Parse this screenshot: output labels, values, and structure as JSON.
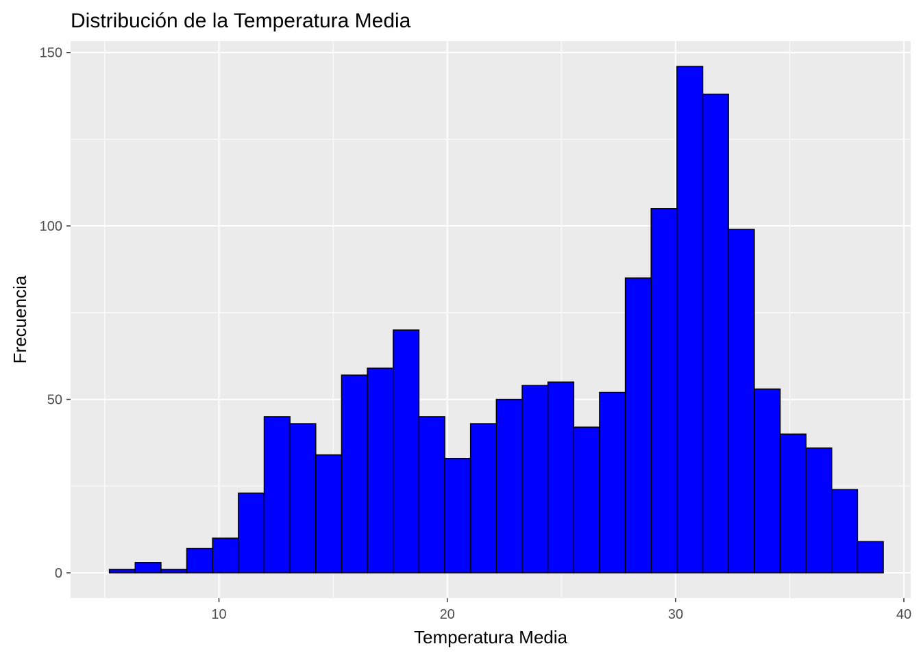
{
  "chart_data": {
    "type": "bar",
    "title": "Distribución de la Temperatura Media",
    "xlabel": "Temperatura Media",
    "ylabel": "Frecuencia",
    "bin_width": 1.13,
    "bins": [
      {
        "x0": 5.2,
        "x1": 6.33,
        "count": 1
      },
      {
        "x0": 6.33,
        "x1": 7.46,
        "count": 3
      },
      {
        "x0": 7.46,
        "x1": 8.59,
        "count": 1
      },
      {
        "x0": 8.59,
        "x1": 9.72,
        "count": 7
      },
      {
        "x0": 9.72,
        "x1": 10.85,
        "count": 10
      },
      {
        "x0": 10.85,
        "x1": 11.98,
        "count": 23
      },
      {
        "x0": 11.98,
        "x1": 13.11,
        "count": 45
      },
      {
        "x0": 13.11,
        "x1": 14.24,
        "count": 43
      },
      {
        "x0": 14.24,
        "x1": 15.37,
        "count": 34
      },
      {
        "x0": 15.37,
        "x1": 16.5,
        "count": 57
      },
      {
        "x0": 16.5,
        "x1": 17.63,
        "count": 59
      },
      {
        "x0": 17.63,
        "x1": 18.76,
        "count": 70
      },
      {
        "x0": 18.76,
        "x1": 19.89,
        "count": 45
      },
      {
        "x0": 19.89,
        "x1": 21.02,
        "count": 33
      },
      {
        "x0": 21.02,
        "x1": 22.15,
        "count": 43
      },
      {
        "x0": 22.15,
        "x1": 23.28,
        "count": 50
      },
      {
        "x0": 23.28,
        "x1": 24.41,
        "count": 54
      },
      {
        "x0": 24.41,
        "x1": 25.54,
        "count": 55
      },
      {
        "x0": 25.54,
        "x1": 26.67,
        "count": 42
      },
      {
        "x0": 26.67,
        "x1": 27.8,
        "count": 52
      },
      {
        "x0": 27.8,
        "x1": 28.93,
        "count": 85
      },
      {
        "x0": 28.93,
        "x1": 30.06,
        "count": 105
      },
      {
        "x0": 30.06,
        "x1": 31.19,
        "count": 146
      },
      {
        "x0": 31.19,
        "x1": 32.32,
        "count": 138
      },
      {
        "x0": 32.32,
        "x1": 33.45,
        "count": 99
      },
      {
        "x0": 33.45,
        "x1": 34.58,
        "count": 53
      },
      {
        "x0": 34.58,
        "x1": 35.71,
        "count": 40
      },
      {
        "x0": 35.71,
        "x1": 36.84,
        "count": 36
      },
      {
        "x0": 36.84,
        "x1": 37.97,
        "count": 24
      },
      {
        "x0": 37.97,
        "x1": 39.1,
        "count": 9
      }
    ],
    "xlim": [
      3.5,
      40.3
    ],
    "ylim": [
      -7.3,
      153.3
    ],
    "x_ticks": [
      10,
      20,
      30,
      40
    ],
    "y_ticks": [
      0,
      50,
      100,
      150
    ],
    "x_minor_ticks": [
      5,
      15,
      25,
      35
    ],
    "y_minor_ticks": [
      25,
      75,
      125
    ],
    "grid": true,
    "legend": "none",
    "colors": {
      "bar_fill": "#0000ff",
      "bar_stroke": "#000000",
      "panel_background": "#ebebeb",
      "grid": "#ffffff",
      "tick_text": "#4d4d4d"
    }
  }
}
